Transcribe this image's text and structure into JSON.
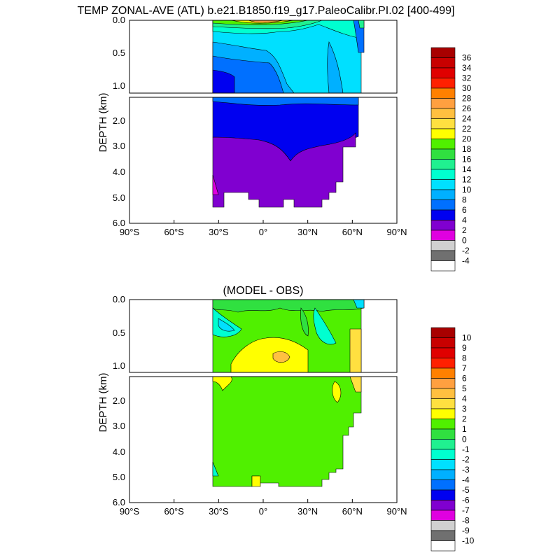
{
  "chart_data": [
    {
      "type": "heatmap",
      "title": "TEMP ZONAL-AVE (ATL) b.e21.B1850.f19_g17.PaleoCalibr.PI.02 [400-499]",
      "ylabel": "DEPTH (km)",
      "x_ticks": [
        "90°S",
        "60°S",
        "30°S",
        "0°",
        "30°N",
        "60°N",
        "90°N"
      ],
      "y_ticks_upper": [
        "0.0",
        "0.5",
        "1.0"
      ],
      "y_ticks_lower": [
        "2.0",
        "3.0",
        "4.0",
        "5.0",
        "6.0"
      ],
      "xlim": [
        -90,
        90
      ],
      "ylim": [
        0,
        6
      ],
      "colorbar": {
        "labels": [
          "36",
          "34",
          "32",
          "30",
          "28",
          "26",
          "24",
          "22",
          "20",
          "18",
          "16",
          "14",
          "12",
          "10",
          "8",
          "6",
          "4",
          "2",
          "0",
          "-2",
          "-4"
        ],
        "colors": [
          "#a80000",
          "#c80000",
          "#e00000",
          "#ff2000",
          "#ff8000",
          "#ffa040",
          "#ffc040",
          "#ffe040",
          "#ffff00",
          "#50f000",
          "#30e040",
          "#20f090",
          "#00ffd0",
          "#00e0ff",
          "#00b0ff",
          "#0070ff",
          "#0000f0",
          "#8000d0",
          "#e000e0",
          "#d0d0d0",
          "#707070",
          "#ffffff"
        ]
      }
    },
    {
      "type": "heatmap",
      "title": "(MODEL - OBS)",
      "ylabel": "DEPTH (km)",
      "x_ticks": [
        "90°S",
        "60°S",
        "30°S",
        "0°",
        "30°N",
        "60°N",
        "90°N"
      ],
      "y_ticks_upper": [
        "0.0",
        "0.5",
        "1.0"
      ],
      "y_ticks_lower": [
        "2.0",
        "3.0",
        "4.0",
        "5.0",
        "6.0"
      ],
      "xlim": [
        -90,
        90
      ],
      "ylim": [
        0,
        6
      ],
      "colorbar": {
        "labels": [
          "10",
          "9",
          "8",
          "7",
          "6",
          "5",
          "4",
          "3",
          "2",
          "1",
          "0",
          "-1",
          "-2",
          "-3",
          "-4",
          "-5",
          "-6",
          "-7",
          "-8",
          "-9",
          "-10"
        ],
        "colors": [
          "#a80000",
          "#c80000",
          "#e00000",
          "#ff2000",
          "#ff8000",
          "#ffa040",
          "#ffc040",
          "#ffe040",
          "#ffff00",
          "#50f000",
          "#30e040",
          "#20f090",
          "#00ffd0",
          "#00e0ff",
          "#00b0ff",
          "#0070ff",
          "#0000f0",
          "#8000d0",
          "#e000e0",
          "#d0d0d0",
          "#707070",
          "#ffffff"
        ]
      }
    }
  ]
}
